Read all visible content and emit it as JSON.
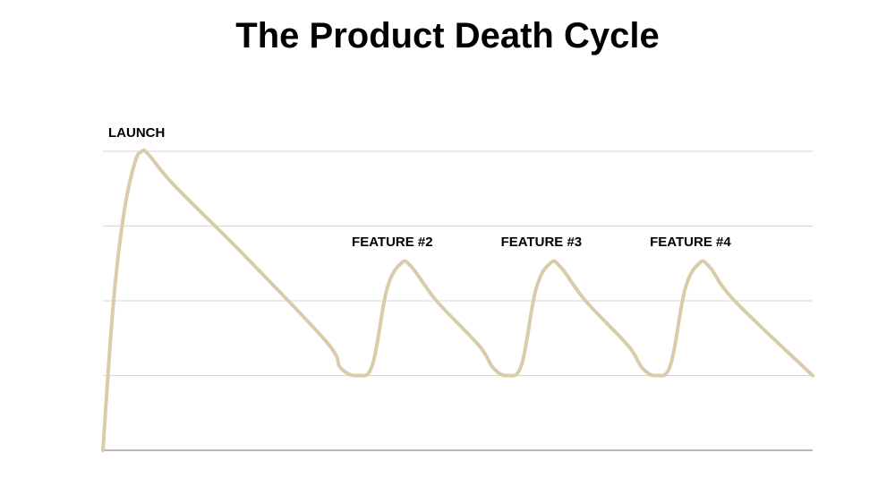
{
  "chart_data": {
    "type": "line",
    "title": "The Product Death Cycle",
    "xlabel": "",
    "ylabel": "",
    "grid": true,
    "axes_visible": {
      "x": true,
      "y": false
    },
    "ylim": [
      0,
      4
    ],
    "xlim": [
      0,
      100
    ],
    "line_color": "#d9ccaa",
    "grid_color": "#d6d6d6",
    "series": [
      {
        "points": [
          [
            0,
            0
          ],
          [
            1.5,
            2
          ],
          [
            3,
            3.2
          ],
          [
            4.5,
            3.85
          ],
          [
            5.5,
            4.0
          ],
          [
            6.5,
            3.95
          ],
          [
            10,
            3.55
          ],
          [
            20,
            2.6
          ],
          [
            31.5,
            1.45
          ],
          [
            33.5,
            1.1
          ],
          [
            36,
            1.0
          ],
          [
            38,
            1.15
          ],
          [
            40,
            2.15
          ],
          [
            42,
            2.5
          ],
          [
            43.5,
            2.45
          ],
          [
            47,
            2.0
          ],
          [
            53,
            1.4
          ],
          [
            55,
            1.1
          ],
          [
            57,
            1.0
          ],
          [
            59,
            1.15
          ],
          [
            61,
            2.15
          ],
          [
            63,
            2.5
          ],
          [
            64.5,
            2.45
          ],
          [
            68,
            2.0
          ],
          [
            74,
            1.4
          ],
          [
            76,
            1.1
          ],
          [
            78,
            1.0
          ],
          [
            80,
            1.15
          ],
          [
            82,
            2.15
          ],
          [
            84,
            2.5
          ],
          [
            85.5,
            2.45
          ],
          [
            89,
            2.0
          ],
          [
            100,
            1.0
          ]
        ]
      }
    ],
    "annotations": [
      {
        "text": "LAUNCH",
        "x": 5.5
      },
      {
        "text": "FEATURE #2",
        "x": 42
      },
      {
        "text": "FEATURE #3",
        "x": 63
      },
      {
        "text": "FEATURE #4",
        "x": 84
      }
    ]
  }
}
